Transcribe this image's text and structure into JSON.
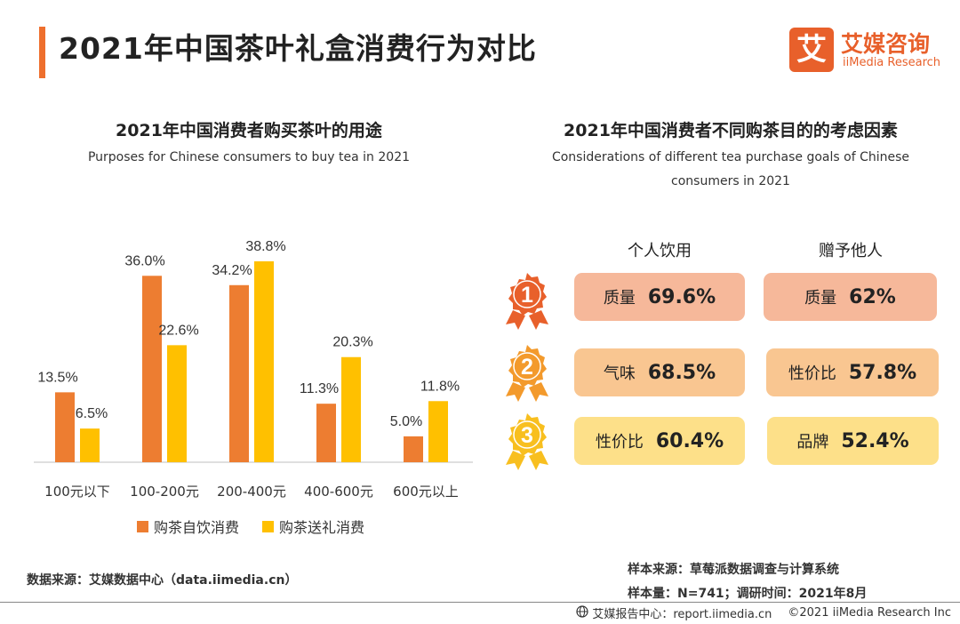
{
  "page": {
    "title": "2021年中国茶叶礼盒消费行为对比"
  },
  "logo": {
    "mark": "艾",
    "cn": "艾媒咨询",
    "en": "iiMedia Research"
  },
  "left_chart": {
    "title": "2021年中国消费者购买茶叶的用途",
    "subtitle": "Purposes for Chinese consumers to buy tea in 2021"
  },
  "chart_data": {
    "type": "bar",
    "title": "2021年中国消费者购买茶叶的用途",
    "subtitle": "Purposes for Chinese consumers to buy tea in 2021",
    "categories": [
      "100元以下",
      "100-200元",
      "200-400元",
      "400-600元",
      "600元以上"
    ],
    "series": [
      {
        "name": "购茶自饮消费",
        "color": "#ed7d31",
        "values": [
          13.5,
          36.0,
          34.2,
          11.3,
          5.0
        ],
        "labels": [
          "13.5%",
          "36.0%",
          "34.2%",
          "11.3%",
          "5.0%"
        ]
      },
      {
        "name": "购茶送礼消费",
        "color": "#ffc000",
        "values": [
          6.5,
          22.6,
          38.8,
          20.3,
          11.8
        ],
        "labels": [
          "6.5%",
          "22.6%",
          "38.8%",
          "20.3%",
          "11.8%"
        ]
      }
    ],
    "ylim": [
      0,
      40
    ],
    "legend": "bottom",
    "grid": false
  },
  "right_panel": {
    "title": "2021年中国消费者不同购茶目的的考虑因素",
    "subtitle_line1": "Considerations of different tea purchase goals of Chinese",
    "subtitle_line2": "consumers in 2021",
    "columns": [
      "个人饮用",
      "赠予他人"
    ],
    "ranks": [
      {
        "num": "1",
        "color": "#e8602b",
        "personal": {
          "label": "质量",
          "value": "69.6%"
        },
        "gift": {
          "label": "质量",
          "value": "62%"
        },
        "pill_color": "#f6b89a"
      },
      {
        "num": "2",
        "color": "#f39a2c",
        "personal": {
          "label": "气味",
          "value": "68.5%"
        },
        "gift": {
          "label": "性价比",
          "value": "57.8%"
        },
        "pill_color": "#f9c691"
      },
      {
        "num": "3",
        "color": "#f8bf1f",
        "personal": {
          "label": "性价比",
          "value": "60.4%"
        },
        "gift": {
          "label": "品牌",
          "value": "52.4%"
        },
        "pill_color": "#fde089"
      }
    ]
  },
  "footer": {
    "source_left": "数据来源：艾媒数据中心（data.iimedia.cn）",
    "source_right_1": "样本来源：草莓派数据调查与计算系统",
    "source_right_2": "样本量：N=741；调研时间：2021年8月",
    "report": "艾媒报告中心：report.iimedia.cn",
    "copyright": "©2021  iiMedia Research  Inc"
  }
}
